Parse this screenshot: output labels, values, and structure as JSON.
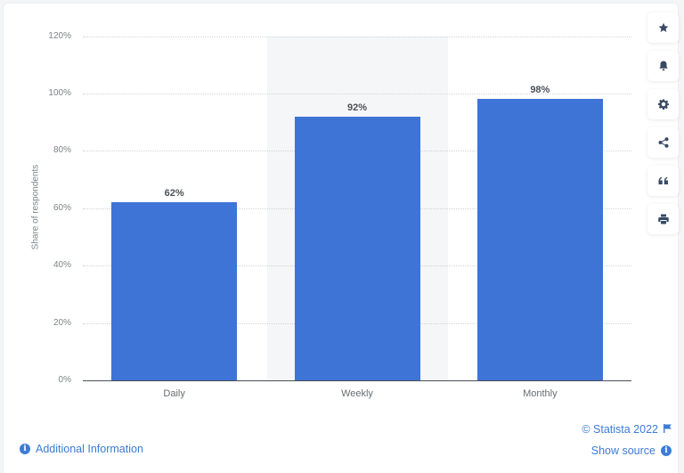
{
  "chart_data": {
    "type": "bar",
    "title": "",
    "xlabel": "",
    "ylabel": "Share of respondents",
    "categories": [
      "Daily",
      "Weekly",
      "Monthly"
    ],
    "values": [
      62,
      92,
      98
    ],
    "value_labels": [
      "62%",
      "92%",
      "98%"
    ],
    "ylim": [
      0,
      120
    ],
    "yticks": [
      0,
      20,
      40,
      60,
      80,
      100,
      120
    ],
    "ytick_labels": [
      "0%",
      "20%",
      "40%",
      "60%",
      "80%",
      "100%",
      "120%"
    ],
    "grid": true,
    "bar_color": "#3e74d6",
    "highlighted_category": "Weekly"
  },
  "toolbar": {
    "buttons": [
      {
        "name": "favorite",
        "icon": "star-icon"
      },
      {
        "name": "notify",
        "icon": "bell-icon"
      },
      {
        "name": "settings",
        "icon": "gear-icon"
      },
      {
        "name": "share",
        "icon": "share-icon"
      },
      {
        "name": "cite",
        "icon": "quote-icon"
      },
      {
        "name": "print",
        "icon": "print-icon"
      }
    ]
  },
  "footer": {
    "additional_info": "Additional Information",
    "copyright": "© Statista 2022",
    "show_source": "Show source",
    "info_glyph": "i"
  },
  "colors": {
    "bar": "#3e74d6",
    "link": "#3c7bd6",
    "icon": "#384a64"
  }
}
